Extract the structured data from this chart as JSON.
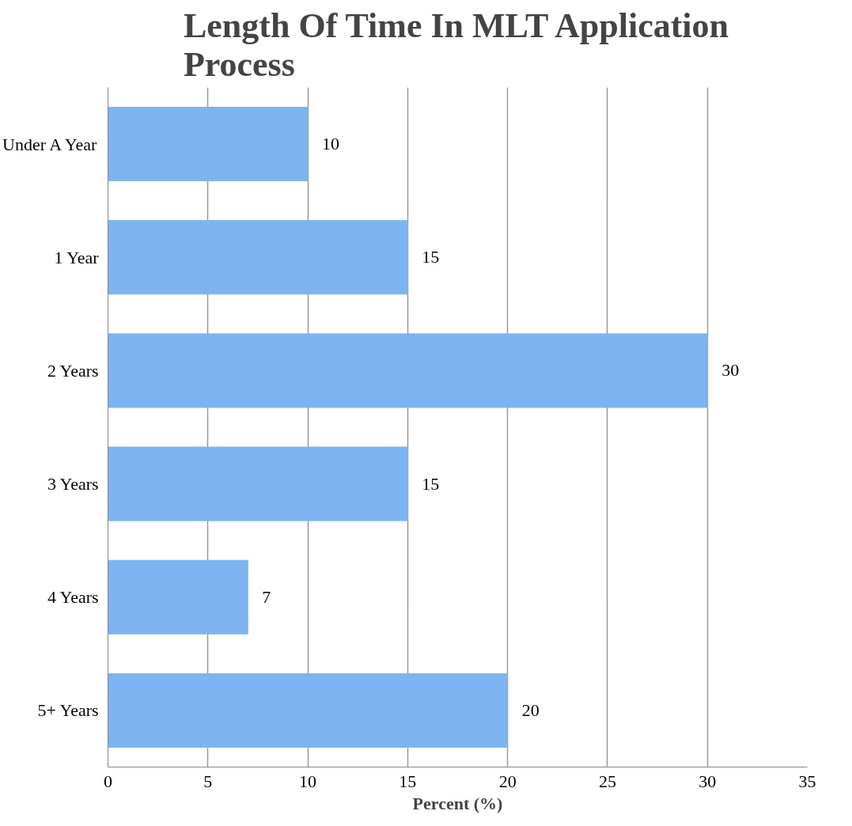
{
  "chart_data": {
    "type": "bar",
    "orientation": "horizontal",
    "title": "Length Of Time In MLT Application\nProcess",
    "xlabel": "Percent (%)",
    "categories": [
      "Under A Year",
      "1 Year",
      "2 Years",
      "3 Years",
      "4 Years",
      "5+ Years"
    ],
    "values": [
      10,
      15,
      30,
      15,
      7,
      20
    ],
    "color": "#7db3f0",
    "xlim": [
      0,
      35
    ],
    "xticks": [
      0,
      5,
      10,
      15,
      20,
      25,
      30,
      35
    ],
    "grid": "x",
    "data_labels": true
  }
}
